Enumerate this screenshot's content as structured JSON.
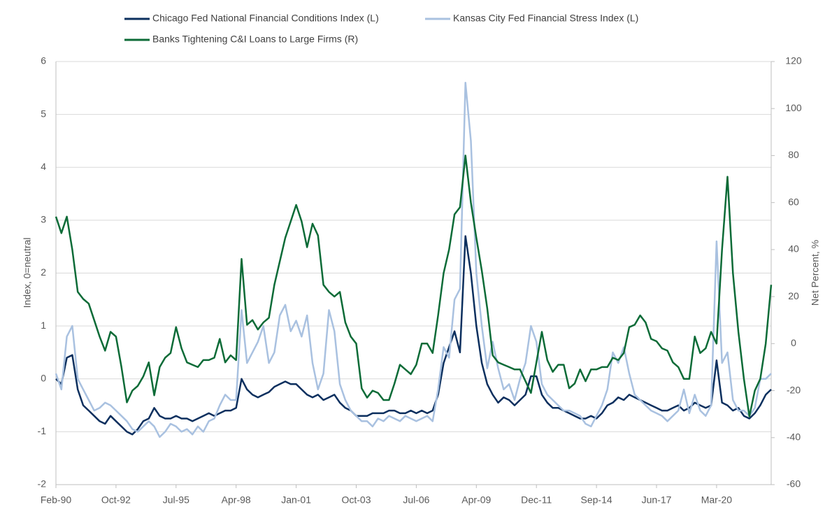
{
  "chart_data": {
    "type": "line",
    "ylabel": "Index, 0=neutral",
    "y2label": "Net Percent, %",
    "categories": [
      "Feb-90",
      null,
      null,
      null,
      null,
      null,
      null,
      null,
      null,
      null,
      null,
      "Oct-92",
      null,
      null,
      null,
      null,
      null,
      null,
      null,
      null,
      null,
      null,
      "Jul-95",
      null,
      null,
      null,
      null,
      null,
      null,
      null,
      null,
      null,
      null,
      "Apr-98",
      null,
      null,
      null,
      null,
      null,
      null,
      null,
      null,
      null,
      null,
      "Jan-01",
      null,
      null,
      null,
      null,
      null,
      null,
      null,
      null,
      null,
      null,
      "Oct-03",
      null,
      null,
      null,
      null,
      null,
      null,
      null,
      null,
      null,
      null,
      "Jul-06",
      null,
      null,
      null,
      null,
      null,
      null,
      null,
      null,
      null,
      null,
      "Apr-09",
      null,
      null,
      null,
      null,
      null,
      null,
      null,
      null,
      null,
      null,
      "Dec-11",
      null,
      null,
      null,
      null,
      null,
      null,
      null,
      null,
      null,
      null,
      "Sep-14",
      null,
      null,
      null,
      null,
      null,
      null,
      null,
      null,
      null,
      null,
      "Jun-17",
      null,
      null,
      null,
      null,
      null,
      null,
      null,
      null,
      null,
      null,
      "Mar-20",
      null,
      null,
      null,
      null,
      null,
      null,
      null,
      null,
      null,
      null
    ],
    "series": [
      {
        "name": "Chicago Fed National Financial Conditions Index (L)",
        "color": "#0b2f5e",
        "axis": "y",
        "values": [
          0.0,
          -0.1,
          0.4,
          0.45,
          -0.2,
          -0.5,
          -0.6,
          -0.7,
          -0.8,
          -0.85,
          -0.7,
          -0.8,
          -0.9,
          -1.0,
          -1.05,
          -0.95,
          -0.8,
          -0.75,
          -0.55,
          -0.7,
          -0.75,
          -0.75,
          -0.7,
          -0.75,
          -0.75,
          -0.8,
          -0.75,
          -0.7,
          -0.65,
          -0.7,
          -0.65,
          -0.6,
          -0.6,
          -0.55,
          0.0,
          -0.2,
          -0.3,
          -0.35,
          -0.3,
          -0.25,
          -0.15,
          -0.1,
          -0.05,
          -0.1,
          -0.1,
          -0.2,
          -0.3,
          -0.35,
          -0.3,
          -0.4,
          -0.35,
          -0.3,
          -0.45,
          -0.55,
          -0.6,
          -0.7,
          -0.7,
          -0.7,
          -0.65,
          -0.65,
          -0.65,
          -0.6,
          -0.6,
          -0.65,
          -0.65,
          -0.6,
          -0.65,
          -0.6,
          -0.65,
          -0.6,
          -0.3,
          0.3,
          0.6,
          0.9,
          0.5,
          2.7,
          2.0,
          1.0,
          0.3,
          -0.1,
          -0.3,
          -0.45,
          -0.35,
          -0.4,
          -0.5,
          -0.4,
          -0.3,
          0.05,
          0.05,
          -0.3,
          -0.45,
          -0.55,
          -0.55,
          -0.6,
          -0.65,
          -0.7,
          -0.75,
          -0.75,
          -0.7,
          -0.75,
          -0.65,
          -0.5,
          -0.45,
          -0.35,
          -0.4,
          -0.3,
          -0.35,
          -0.4,
          -0.45,
          -0.5,
          -0.55,
          -0.6,
          -0.6,
          -0.55,
          -0.5,
          -0.6,
          -0.55,
          -0.45,
          -0.5,
          -0.55,
          -0.5,
          0.35,
          -0.45,
          -0.5,
          -0.6,
          -0.55,
          -0.7,
          -0.75,
          -0.65,
          -0.5,
          -0.3,
          -0.2
        ]
      },
      {
        "name": "Kansas City Fed Financial Stress Index (L)",
        "color": "#a9c1e0",
        "axis": "y",
        "values": [
          0.1,
          -0.2,
          0.8,
          1.0,
          0.0,
          -0.2,
          -0.4,
          -0.6,
          -0.55,
          -0.45,
          -0.5,
          -0.6,
          -0.7,
          -0.8,
          -0.95,
          -1.0,
          -0.9,
          -0.8,
          -0.9,
          -1.1,
          -1.0,
          -0.85,
          -0.9,
          -1.0,
          -0.95,
          -1.05,
          -0.9,
          -1.0,
          -0.8,
          -0.75,
          -0.5,
          -0.3,
          -0.4,
          -0.4,
          1.3,
          0.3,
          0.5,
          0.7,
          1.0,
          0.3,
          0.5,
          1.2,
          1.4,
          0.9,
          1.1,
          0.8,
          1.2,
          0.3,
          -0.2,
          0.1,
          1.3,
          0.9,
          -0.1,
          -0.4,
          -0.6,
          -0.7,
          -0.8,
          -0.8,
          -0.9,
          -0.75,
          -0.8,
          -0.7,
          -0.75,
          -0.8,
          -0.7,
          -0.75,
          -0.8,
          -0.75,
          -0.7,
          -0.8,
          -0.2,
          0.6,
          0.4,
          1.5,
          1.7,
          5.6,
          4.5,
          2.0,
          1.0,
          0.2,
          0.7,
          0.2,
          -0.2,
          -0.1,
          -0.4,
          0.0,
          0.3,
          1.0,
          0.7,
          -0.1,
          -0.3,
          -0.4,
          -0.5,
          -0.6,
          -0.6,
          -0.65,
          -0.7,
          -0.85,
          -0.9,
          -0.7,
          -0.5,
          -0.2,
          0.5,
          0.3,
          0.6,
          0.1,
          -0.3,
          -0.4,
          -0.5,
          -0.6,
          -0.65,
          -0.7,
          -0.8,
          -0.7,
          -0.6,
          -0.2,
          -0.65,
          -0.3,
          -0.6,
          -0.7,
          -0.5,
          2.6,
          0.3,
          0.5,
          -0.4,
          -0.6,
          -0.6,
          -0.7,
          -0.55,
          0.0,
          0.0,
          0.1
        ]
      },
      {
        "name": "Banks Tightening C&I Loans to Large Firms (R)",
        "color": "#0c6b37",
        "axis": "y2",
        "values": [
          54,
          47,
          54,
          40,
          22,
          19,
          17,
          10,
          3,
          -3,
          5,
          3,
          -10,
          -25,
          -20,
          -18,
          -14,
          -8,
          -22,
          -10,
          -6,
          -4,
          7,
          -2,
          -8,
          -9,
          -10,
          -7,
          -7,
          -6,
          2,
          -8,
          -5,
          -7,
          36,
          8,
          10,
          6,
          9,
          11,
          25,
          35,
          45,
          52,
          59,
          52,
          41,
          51,
          46,
          25,
          22,
          20,
          22,
          9,
          3,
          0,
          -19,
          -23,
          -20,
          -21,
          -24,
          -24,
          -17,
          -9,
          -11,
          -13,
          -9,
          0,
          0,
          -4,
          12,
          30,
          40,
          55,
          58,
          80,
          60,
          45,
          31,
          15,
          -5,
          -8,
          -9,
          -10,
          -11,
          -11,
          -16,
          -21,
          -8,
          5,
          -7,
          -12,
          -9,
          -9,
          -19,
          -17,
          -11,
          -16,
          -11,
          -11,
          -10,
          -10,
          -6,
          -7,
          -4,
          7,
          8,
          12,
          9,
          2,
          1,
          -2,
          -3,
          -8,
          -10,
          -15,
          -15,
          3,
          -4,
          -2,
          5,
          0,
          40,
          71,
          30,
          5,
          -15,
          -31,
          -20,
          -15,
          0,
          25
        ]
      }
    ],
    "ylim": [
      -2,
      6
    ],
    "yticks": [
      -2,
      -1,
      0,
      1,
      2,
      3,
      4,
      5,
      6
    ],
    "y2lim": [
      -60,
      120
    ],
    "y2ticks": [
      -60,
      -40,
      -20,
      0,
      20,
      40,
      60,
      80,
      100,
      120
    ],
    "grid": true,
    "legend": "top"
  }
}
